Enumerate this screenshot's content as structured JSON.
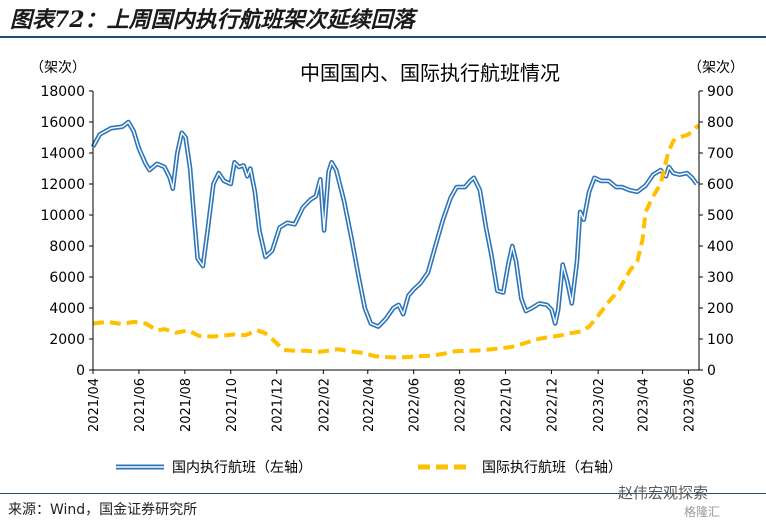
{
  "figure": {
    "title": "图表72：上周国内执行航班架次延续回落",
    "source": "来源：Wind，国金证券研究所",
    "watermark": "赵伟宏观探索",
    "watermark2": "格隆汇"
  },
  "chart_data": {
    "type": "line",
    "title": "中国国内、国际执行航班情况",
    "left_unit": "（架次）",
    "right_unit": "（架次）",
    "y_left": {
      "min": 0,
      "max": 18000,
      "ticks": [
        0,
        2000,
        4000,
        6000,
        8000,
        10000,
        12000,
        14000,
        16000,
        18000
      ]
    },
    "y_right": {
      "min": 0,
      "max": 900,
      "ticks": [
        0,
        100,
        200,
        300,
        400,
        500,
        600,
        700,
        800,
        900
      ]
    },
    "x_range": [
      "2021-04-01",
      "2023-06-15"
    ],
    "x_ticks": [
      "2021/04",
      "2021/06",
      "2021/08",
      "2021/10",
      "2021/12",
      "2022/02",
      "2022/04",
      "2022/06",
      "2022/08",
      "2022/10",
      "2022/12",
      "2023/02",
      "2023/04",
      "2023/06"
    ],
    "series": [
      {
        "name": "国内执行航班（左轴）",
        "axis": "left",
        "color": "#2e75b6",
        "style": "double",
        "points": [
          [
            "2021-04-01",
            14400
          ],
          [
            "2021-04-10",
            15200
          ],
          [
            "2021-04-25",
            15600
          ],
          [
            "2021-05-10",
            15700
          ],
          [
            "2021-05-18",
            16000
          ],
          [
            "2021-05-25",
            15400
          ],
          [
            "2021-06-01",
            14300
          ],
          [
            "2021-06-10",
            13300
          ],
          [
            "2021-06-15",
            12900
          ],
          [
            "2021-06-25",
            13300
          ],
          [
            "2021-07-05",
            13100
          ],
          [
            "2021-07-12",
            12400
          ],
          [
            "2021-07-16",
            11700
          ],
          [
            "2021-07-22",
            14000
          ],
          [
            "2021-07-28",
            15300
          ],
          [
            "2021-08-02",
            15000
          ],
          [
            "2021-08-08",
            13000
          ],
          [
            "2021-08-13",
            10000
          ],
          [
            "2021-08-18",
            7200
          ],
          [
            "2021-08-25",
            6700
          ],
          [
            "2021-09-01",
            9300
          ],
          [
            "2021-09-08",
            12000
          ],
          [
            "2021-09-15",
            12700
          ],
          [
            "2021-09-22",
            12200
          ],
          [
            "2021-10-01",
            12000
          ],
          [
            "2021-10-06",
            13400
          ],
          [
            "2021-10-12",
            13100
          ],
          [
            "2021-10-18",
            13200
          ],
          [
            "2021-10-23",
            12500
          ],
          [
            "2021-10-27",
            13000
          ],
          [
            "2021-11-02",
            11500
          ],
          [
            "2021-11-08",
            9000
          ],
          [
            "2021-11-16",
            7300
          ],
          [
            "2021-11-25",
            7700
          ],
          [
            "2021-12-05",
            9200
          ],
          [
            "2021-12-15",
            9500
          ],
          [
            "2021-12-25",
            9400
          ],
          [
            "2022-01-05",
            10500
          ],
          [
            "2022-01-15",
            11000
          ],
          [
            "2022-01-22",
            11200
          ],
          [
            "2022-01-28",
            12300
          ],
          [
            "2022-02-02",
            9000
          ],
          [
            "2022-02-08",
            12800
          ],
          [
            "2022-02-12",
            13400
          ],
          [
            "2022-02-18",
            12900
          ],
          [
            "2022-02-28",
            11000
          ],
          [
            "2022-03-10",
            8600
          ],
          [
            "2022-03-20",
            6000
          ],
          [
            "2022-03-28",
            4000
          ],
          [
            "2022-04-05",
            3000
          ],
          [
            "2022-04-15",
            2800
          ],
          [
            "2022-04-25",
            3300
          ],
          [
            "2022-05-05",
            4000
          ],
          [
            "2022-05-12",
            4200
          ],
          [
            "2022-05-18",
            3600
          ],
          [
            "2022-05-25",
            4800
          ],
          [
            "2022-06-01",
            5200
          ],
          [
            "2022-06-10",
            5600
          ],
          [
            "2022-06-20",
            6300
          ],
          [
            "2022-07-01",
            8200
          ],
          [
            "2022-07-10",
            9700
          ],
          [
            "2022-07-20",
            11100
          ],
          [
            "2022-07-28",
            11800
          ],
          [
            "2022-08-08",
            11800
          ],
          [
            "2022-08-15",
            12200
          ],
          [
            "2022-08-20",
            12400
          ],
          [
            "2022-08-28",
            11600
          ],
          [
            "2022-09-05",
            9200
          ],
          [
            "2022-09-12",
            7500
          ],
          [
            "2022-09-20",
            5100
          ],
          [
            "2022-09-28",
            5000
          ],
          [
            "2022-10-05",
            6900
          ],
          [
            "2022-10-10",
            8000
          ],
          [
            "2022-10-15",
            7000
          ],
          [
            "2022-10-22",
            4600
          ],
          [
            "2022-10-28",
            3800
          ],
          [
            "2022-11-05",
            4000
          ],
          [
            "2022-11-15",
            4300
          ],
          [
            "2022-11-25",
            4200
          ],
          [
            "2022-12-01",
            3900
          ],
          [
            "2022-12-06",
            3000
          ],
          [
            "2022-12-10",
            3900
          ],
          [
            "2022-12-16",
            6800
          ],
          [
            "2022-12-22",
            5700
          ],
          [
            "2022-12-28",
            4300
          ],
          [
            "2023-01-04",
            7000
          ],
          [
            "2023-01-08",
            10200
          ],
          [
            "2023-01-13",
            9700
          ],
          [
            "2023-01-20",
            11500
          ],
          [
            "2023-01-27",
            12400
          ],
          [
            "2023-02-05",
            12200
          ],
          [
            "2023-02-15",
            12200
          ],
          [
            "2023-02-25",
            11800
          ],
          [
            "2023-03-05",
            11800
          ],
          [
            "2023-03-15",
            11600
          ],
          [
            "2023-03-25",
            11500
          ],
          [
            "2023-04-05",
            11900
          ],
          [
            "2023-04-15",
            12600
          ],
          [
            "2023-04-25",
            12900
          ],
          [
            "2023-05-02",
            12500
          ],
          [
            "2023-05-06",
            13100
          ],
          [
            "2023-05-12",
            12700
          ],
          [
            "2023-05-20",
            12600
          ],
          [
            "2023-05-30",
            12700
          ],
          [
            "2023-06-06",
            12400
          ],
          [
            "2023-06-12",
            12000
          ]
        ]
      },
      {
        "name": "国际执行航班（右轴）",
        "axis": "right",
        "color": "#ffc000",
        "style": "dashed",
        "points": [
          [
            "2021-04-01",
            150
          ],
          [
            "2021-04-20",
            155
          ],
          [
            "2021-05-10",
            148
          ],
          [
            "2021-05-25",
            155
          ],
          [
            "2021-06-10",
            150
          ],
          [
            "2021-06-25",
            128
          ],
          [
            "2021-07-05",
            132
          ],
          [
            "2021-07-20",
            120
          ],
          [
            "2021-08-05",
            128
          ],
          [
            "2021-08-20",
            110
          ],
          [
            "2021-09-05",
            108
          ],
          [
            "2021-09-20",
            110
          ],
          [
            "2021-10-05",
            115
          ],
          [
            "2021-10-20",
            112
          ],
          [
            "2021-11-05",
            128
          ],
          [
            "2021-11-15",
            120
          ],
          [
            "2021-11-25",
            100
          ],
          [
            "2021-12-10",
            65
          ],
          [
            "2021-12-25",
            62
          ],
          [
            "2022-01-10",
            62
          ],
          [
            "2022-01-25",
            58
          ],
          [
            "2022-02-10",
            63
          ],
          [
            "2022-02-20",
            67
          ],
          [
            "2022-03-10",
            60
          ],
          [
            "2022-03-25",
            55
          ],
          [
            "2022-04-10",
            45
          ],
          [
            "2022-04-25",
            42
          ],
          [
            "2022-05-10",
            40
          ],
          [
            "2022-05-25",
            42
          ],
          [
            "2022-06-10",
            45
          ],
          [
            "2022-06-25",
            46
          ],
          [
            "2022-07-10",
            52
          ],
          [
            "2022-07-25",
            60
          ],
          [
            "2022-08-10",
            62
          ],
          [
            "2022-08-25",
            63
          ],
          [
            "2022-09-10",
            66
          ],
          [
            "2022-09-25",
            70
          ],
          [
            "2022-10-10",
            75
          ],
          [
            "2022-10-25",
            85
          ],
          [
            "2022-11-10",
            98
          ],
          [
            "2022-11-25",
            105
          ],
          [
            "2022-12-10",
            110
          ],
          [
            "2022-12-25",
            118
          ],
          [
            "2023-01-10",
            125
          ],
          [
            "2023-01-20",
            140
          ],
          [
            "2023-02-01",
            175
          ],
          [
            "2023-02-15",
            220
          ],
          [
            "2023-03-01",
            260
          ],
          [
            "2023-03-15",
            320
          ],
          [
            "2023-03-25",
            350
          ],
          [
            "2023-04-01",
            420
          ],
          [
            "2023-04-05",
            510
          ],
          [
            "2023-04-15",
            560
          ],
          [
            "2023-04-25",
            600
          ],
          [
            "2023-05-05",
            700
          ],
          [
            "2023-05-12",
            740
          ],
          [
            "2023-05-20",
            750
          ],
          [
            "2023-06-01",
            760
          ],
          [
            "2023-06-10",
            780
          ],
          [
            "2023-06-15",
            790
          ]
        ]
      }
    ]
  }
}
